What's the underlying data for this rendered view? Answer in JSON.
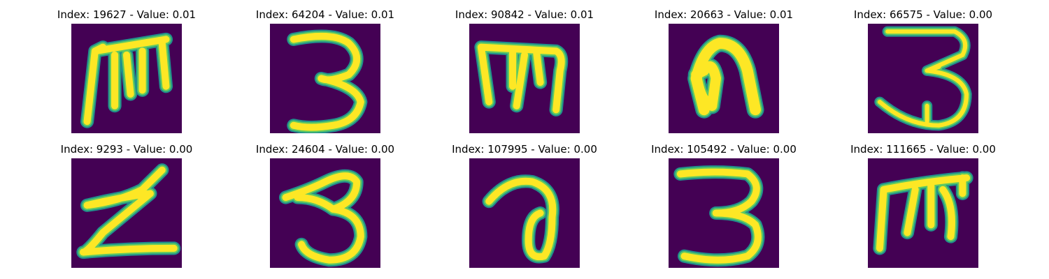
{
  "colors": {
    "background": "#440154",
    "stroke_edge": "#21918c",
    "stroke_mid": "#5ec962",
    "stroke_core": "#fde725"
  },
  "panels": [
    {
      "title": "Index: 19627 - Value: 0.01",
      "glyph": "m-shape"
    },
    {
      "title": "Index: 64204 - Value: 0.01",
      "glyph": "3-shape"
    },
    {
      "title": "Index: 90842 - Value: 0.01",
      "glyph": "m-shape"
    },
    {
      "title": "Index: 20663 - Value: 0.01",
      "glyph": "n-shape"
    },
    {
      "title": "Index: 66575 - Value: 0.00",
      "glyph": "3-shape"
    },
    {
      "title": "Index: 9293 - Value: 0.00",
      "glyph": "z-shape"
    },
    {
      "title": "Index: 24604 - Value: 0.00",
      "glyph": "3-shape"
    },
    {
      "title": "Index: 107995 - Value: 0.00",
      "glyph": "a-shape"
    },
    {
      "title": "Index: 105492 - Value: 0.00",
      "glyph": "3-shape"
    },
    {
      "title": "Index: 111665 - Value: 0.00",
      "glyph": "m-shape"
    }
  ]
}
